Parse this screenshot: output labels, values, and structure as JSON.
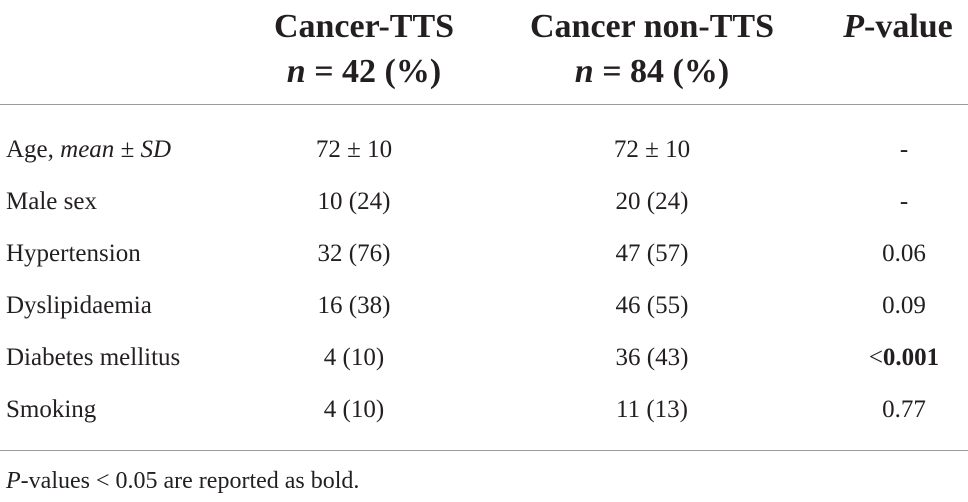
{
  "header": {
    "col1_line1": "Cancer-TTS",
    "col1_n_symbol": "n",
    "col1_line2_rest": " = 42 (%)",
    "col2_line1": "Cancer non-TTS",
    "col2_n_symbol": "n",
    "col2_line2_rest": " = 84 (%)",
    "col3_p_symbol": "P",
    "col3_rest": "-value"
  },
  "rows": [
    {
      "label_main": "Age, ",
      "label_italic": "mean",
      "label_tail": " ± ",
      "label_italic2": "SD",
      "tts": "72 ± 10",
      "non_tts": "72 ± 10",
      "p_prefix": "",
      "p_value": "-"
    },
    {
      "label_main": "Male sex",
      "tts": "10 (24)",
      "non_tts": "20 (24)",
      "p_prefix": "",
      "p_value": "-"
    },
    {
      "label_main": "Hypertension",
      "tts": "32 (76)",
      "non_tts": "47 (57)",
      "p_prefix": "",
      "p_value": "0.06"
    },
    {
      "label_main": "Dyslipidaemia",
      "tts": "16 (38)",
      "non_tts": "46 (55)",
      "p_prefix": "",
      "p_value": "0.09"
    },
    {
      "label_main": "Diabetes mellitus",
      "tts": "4 (10)",
      "non_tts": "36 (43)",
      "p_prefix": "<",
      "p_value": "0.001"
    },
    {
      "label_main": "Smoking",
      "tts": "4 (10)",
      "non_tts": "11 (13)",
      "p_prefix": "",
      "p_value": "0.77"
    }
  ],
  "footnote": {
    "p_symbol": "P",
    "text": "-values < 0.05 are reported as bold."
  }
}
